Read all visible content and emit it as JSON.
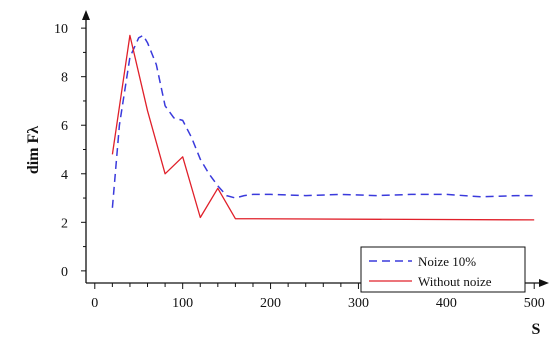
{
  "chart_data": {
    "type": "line",
    "xlabel": "S",
    "ylabel": "dim Fλ",
    "xlim": [
      -10,
      510
    ],
    "ylim": [
      -0.5,
      10.5
    ],
    "xticks": [
      0,
      100,
      200,
      300,
      400,
      500
    ],
    "yticks": [
      0,
      2,
      4,
      6,
      8,
      10
    ],
    "grid": false,
    "legend_position": "bottom-right",
    "series": [
      {
        "name": "Noize 10%",
        "color": "#3a3adc",
        "dash": "dashed",
        "x": [
          20,
          28,
          40,
          50,
          55,
          60,
          70,
          80,
          90,
          100,
          110,
          120,
          130,
          140,
          150,
          160,
          170,
          180,
          200,
          240,
          280,
          320,
          360,
          400,
          440,
          480,
          500
        ],
        "y": [
          2.6,
          6.0,
          8.8,
          9.6,
          9.7,
          9.4,
          8.5,
          6.8,
          6.3,
          6.2,
          5.5,
          4.6,
          4.0,
          3.5,
          3.1,
          3.0,
          3.1,
          3.15,
          3.15,
          3.1,
          3.15,
          3.1,
          3.15,
          3.15,
          3.05,
          3.1,
          3.1
        ]
      },
      {
        "name": "Without noize",
        "color": "#e0202a",
        "dash": "solid",
        "x": [
          20,
          40,
          60,
          80,
          100,
          120,
          140,
          160,
          500
        ],
        "y": [
          4.8,
          9.7,
          6.6,
          4.0,
          4.7,
          2.2,
          3.4,
          2.15,
          2.1
        ]
      }
    ]
  }
}
